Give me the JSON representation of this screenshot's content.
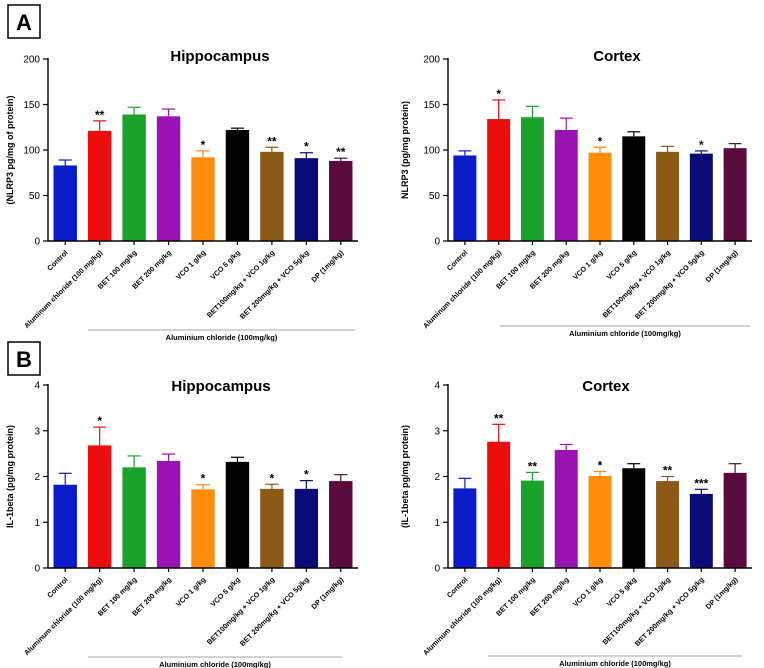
{
  "panels": [
    {
      "letter": "A"
    },
    {
      "letter": "B"
    }
  ],
  "categories": [
    "Control",
    "Aluminum chloride (100 mg/kg)",
    "BET 100 mg/kg",
    "BET 200 mg/kg",
    "VCO 1 g/kg",
    "VCO 5 g/kg",
    "BET100mg/kg + VCO 1g/kg",
    "BET 200mg/kg + VCO 5g/kg",
    "DP (1mg/kg)"
  ],
  "group_label": "Aluminium chloride (100mg/kg)",
  "colors": [
    "#0a1bc9",
    "#ee0d0d",
    "#1aa32b",
    "#9a12b3",
    "#ff8c0a",
    "#000000",
    "#8b5a17",
    "#0b0b78",
    "#5a0a3c"
  ],
  "chart_data": [
    {
      "type": "bar",
      "panel": "A",
      "title": "Hippocampus",
      "ylabel": "(NLRP3 pg/mg of protein)",
      "ylim": [
        0,
        200
      ],
      "yticks": [
        0,
        50,
        100,
        150,
        200
      ],
      "categories": [
        "Control",
        "Aluminum chloride (100 mg/kg)",
        "BET 100 mg/kg",
        "BET 200 mg/kg",
        "VCO 1 g/kg",
        "VCO 5 g/kg",
        "BET100mg/kg + VCO 1g/kg",
        "BET 200mg/kg + VCO 5g/kg",
        "DP (1mg/kg)"
      ],
      "values": [
        83,
        121,
        139,
        137,
        92,
        122,
        98,
        91,
        88
      ],
      "errors": [
        6,
        11,
        8,
        8,
        7,
        2,
        5,
        6,
        3
      ],
      "significance": [
        "",
        "**",
        "",
        "",
        "*",
        "",
        "**",
        "*",
        "**"
      ]
    },
    {
      "type": "bar",
      "panel": "A",
      "title": "Cortex",
      "ylabel": "NLRP3 (pg/mg protein)",
      "ylim": [
        0,
        200
      ],
      "yticks": [
        0,
        50,
        100,
        150,
        200
      ],
      "categories": [
        "Control",
        "Aluminum chloride (100 mg/kg)",
        "BET 100 mg/kg",
        "BET 200 mg/kg",
        "VCO 1 g/kg",
        "VCO 5 g/kg",
        "BET100mg/kg + VCO 1g/kg",
        "BET 200mg/kg + VCO 5g/kg",
        "DP (1mg/kg)"
      ],
      "values": [
        94,
        134,
        136,
        122,
        97,
        115,
        98,
        96,
        102
      ],
      "errors": [
        5,
        21,
        12,
        13,
        6,
        5,
        6,
        3,
        5
      ],
      "significance": [
        "",
        "*",
        "",
        "",
        "*",
        "",
        "",
        "*",
        ""
      ]
    },
    {
      "type": "bar",
      "panel": "B",
      "title": "Hippocampus",
      "ylabel": "IL-1beta (pg/mg protein)",
      "ylim": [
        0,
        4
      ],
      "yticks": [
        0,
        1,
        2,
        3,
        4
      ],
      "categories": [
        "Control",
        "Aluminum chloride (100 mg/kg)",
        "BET 100 mg/kg",
        "BET 200 mg/kg",
        "VCO 1 g/kg",
        "VCO 5 g/kg",
        "BET100mg/kg + VCO 1g/kg",
        "BET 200mg/kg + VCO 5g/kg",
        "DP (1mg/kg)"
      ],
      "values": [
        1.82,
        2.68,
        2.2,
        2.34,
        1.72,
        2.32,
        1.73,
        1.73,
        1.9
      ],
      "errors": [
        0.25,
        0.4,
        0.25,
        0.15,
        0.1,
        0.1,
        0.1,
        0.18,
        0.14
      ],
      "significance": [
        "",
        "*",
        "",
        "",
        "*",
        "",
        "*",
        "*",
        ""
      ]
    },
    {
      "type": "bar",
      "panel": "B",
      "title": "Cortex",
      "ylabel": "(IL-1beta pg/mg protein)",
      "ylim": [
        0,
        4
      ],
      "yticks": [
        0,
        1,
        2,
        3,
        4
      ],
      "categories": [
        "Control",
        "Aluminum chloride (100 mg/kg)",
        "BET 100 mg/kg",
        "BET 200 mg/kg",
        "VCO 1 g/kg",
        "VCO 5 g/kg",
        "BET100mg/kg + VCO 1g/kg",
        "BET 200mg/kg + VCO 5g/kg",
        "DP (1mg/kg)"
      ],
      "values": [
        1.74,
        2.76,
        1.91,
        2.58,
        2.01,
        2.18,
        1.9,
        1.62,
        2.08
      ],
      "errors": [
        0.22,
        0.38,
        0.18,
        0.12,
        0.1,
        0.1,
        0.1,
        0.1,
        0.2
      ],
      "significance": [
        "",
        "**",
        "**",
        "",
        "*",
        "",
        "**",
        "***",
        ""
      ]
    }
  ]
}
